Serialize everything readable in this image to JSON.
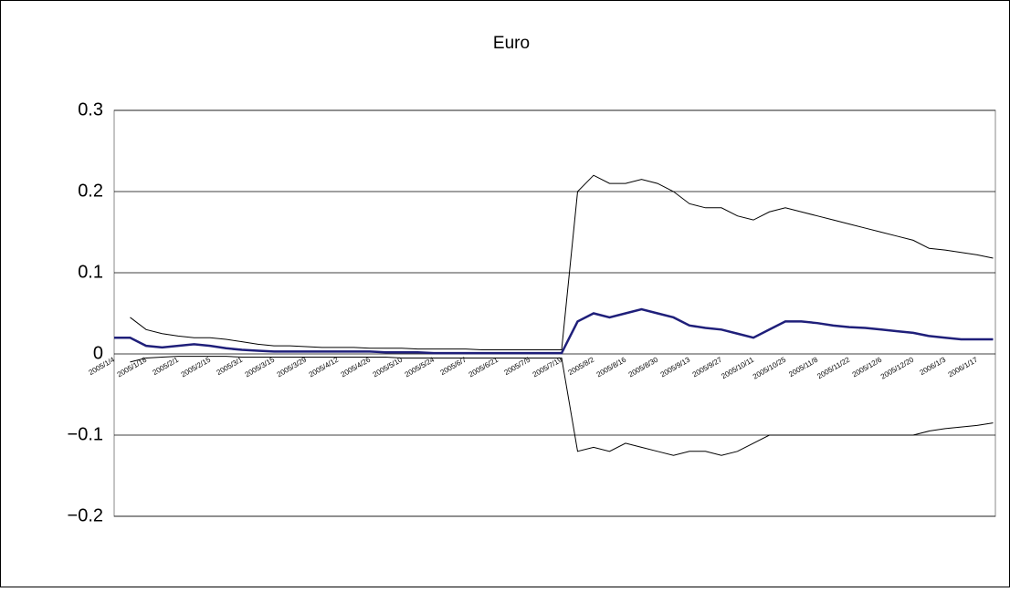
{
  "chart_data": {
    "type": "line",
    "title": "Euro",
    "categories": [
      "2005/1/4",
      null,
      "2005/1/18",
      null,
      "2005/2/1",
      null,
      "2005/2/15",
      null,
      "2005/3/1",
      null,
      "2005/3/15",
      null,
      "2005/3/29",
      null,
      "2005/4/12",
      null,
      "2005/4/26",
      null,
      "2005/5/10",
      null,
      "2005/5/24",
      null,
      "2005/6/7",
      null,
      "2005/6/21",
      null,
      "2005/7/5",
      null,
      "2005/7/19",
      null,
      "2005/8/2",
      null,
      "2005/8/16",
      null,
      "2005/8/30",
      null,
      "2005/9/13",
      null,
      "2005/9/27",
      null,
      "2005/10/11",
      null,
      "2005/10/25",
      null,
      "2005/11/8",
      null,
      "2005/11/22",
      null,
      "2005/12/6",
      null,
      "2005/12/20",
      null,
      "2006/1/3",
      null,
      "2006/1/17",
      null
    ],
    "series": [
      {
        "color": "#000000",
        "values": [
          null,
          0.045,
          0.03,
          0.025,
          0.022,
          0.02,
          0.02,
          0.018,
          0.015,
          0.012,
          0.01,
          0.01,
          0.009,
          0.008,
          0.008,
          0.008,
          0.007,
          0.007,
          0.007,
          0.006,
          0.006,
          0.006,
          0.006,
          0.005,
          0.005,
          0.005,
          0.005,
          0.005,
          0.005,
          0.2,
          0.22,
          0.21,
          0.21,
          0.215,
          0.21,
          0.2,
          0.185,
          0.18,
          0.18,
          0.17,
          0.165,
          0.175,
          0.18,
          0.175,
          0.17,
          0.165,
          0.16,
          0.155,
          0.15,
          0.145,
          0.14,
          0.13,
          0.128,
          0.125,
          0.122,
          0.118
        ]
      },
      {
        "color": "#000000",
        "values": [
          null,
          -0.01,
          -0.005,
          -0.004,
          -0.003,
          -0.003,
          -0.003,
          -0.003,
          -0.004,
          -0.004,
          -0.004,
          -0.004,
          -0.004,
          -0.004,
          -0.004,
          -0.004,
          -0.004,
          -0.004,
          -0.005,
          -0.005,
          -0.005,
          -0.005,
          -0.005,
          -0.005,
          -0.005,
          -0.005,
          -0.005,
          -0.005,
          -0.005,
          -0.12,
          -0.115,
          -0.12,
          -0.11,
          -0.115,
          -0.12,
          -0.125,
          -0.12,
          -0.12,
          -0.125,
          -0.12,
          -0.11,
          -0.1,
          -0.1,
          -0.1,
          -0.1,
          -0.1,
          -0.1,
          -0.1,
          -0.1,
          -0.1,
          -0.1,
          -0.095,
          -0.092,
          -0.09,
          -0.088,
          -0.085
        ]
      },
      {
        "color": "#1f1f7a",
        "values": [
          0.02,
          0.02,
          0.01,
          0.008,
          0.01,
          0.012,
          0.01,
          0.007,
          0.005,
          0.004,
          0.003,
          0.003,
          0.003,
          0.003,
          0.003,
          0.003,
          0.003,
          0.002,
          0.002,
          0.002,
          0.001,
          0.001,
          0.001,
          0.001,
          0.001,
          0.001,
          0.001,
          0.001,
          0.001,
          0.04,
          0.05,
          0.045,
          0.05,
          0.055,
          0.05,
          0.045,
          0.035,
          0.032,
          0.03,
          0.025,
          0.02,
          0.03,
          0.04,
          0.04,
          0.038,
          0.035,
          0.033,
          0.032,
          0.03,
          0.028,
          0.026,
          0.022,
          0.02,
          0.018,
          0.018,
          0.018
        ]
      }
    ],
    "ylim": [
      -0.2,
      0.3
    ],
    "yticks": [
      {
        "value": -0.2,
        "label": "−0.2"
      },
      {
        "value": -0.1,
        "label": "−0.1"
      },
      0,
      0.1,
      0.2,
      0.3
    ],
    "grid": true
  }
}
